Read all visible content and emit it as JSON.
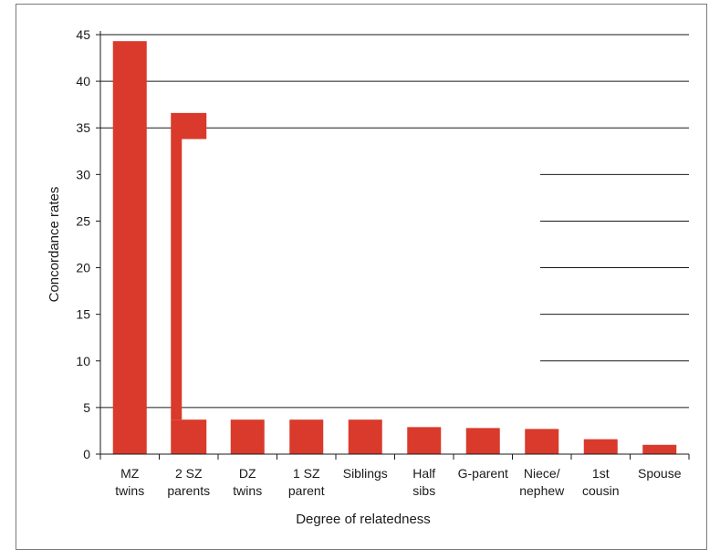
{
  "colors": {
    "bar": "#d93a2b",
    "grid": "#1a1a1a",
    "axis": "#1a1a1a",
    "frame": "#7a7a7a"
  },
  "chart_data": {
    "type": "bar",
    "categories": [
      [
        "MZ",
        "twins"
      ],
      [
        "2 SZ",
        "parents"
      ],
      [
        "DZ",
        "twins"
      ],
      [
        "1 SZ",
        "parent"
      ],
      [
        "Siblings"
      ],
      [
        "Half",
        "sibs"
      ],
      [
        "G-parent"
      ],
      [
        "Niece/",
        "nephew"
      ],
      [
        "1st",
        "cousin"
      ],
      [
        "Spouse"
      ]
    ],
    "values": [
      44.3,
      36.6,
      3.7,
      3.7,
      3.7,
      2.9,
      2.8,
      2.7,
      1.6,
      1.0
    ],
    "annotation_range": {
      "category": "2 SZ parents",
      "high": [
        33.8,
        36.6
      ],
      "low": 3.7
    },
    "xlabel": "Degree of relatedness",
    "ylabel": "Concordance rates",
    "ylim": [
      0,
      45
    ],
    "yticks": [
      "0",
      "5",
      "10",
      "15",
      "20",
      "25",
      "30",
      "35",
      "40",
      "45"
    ],
    "grid": true,
    "legend": "none"
  }
}
